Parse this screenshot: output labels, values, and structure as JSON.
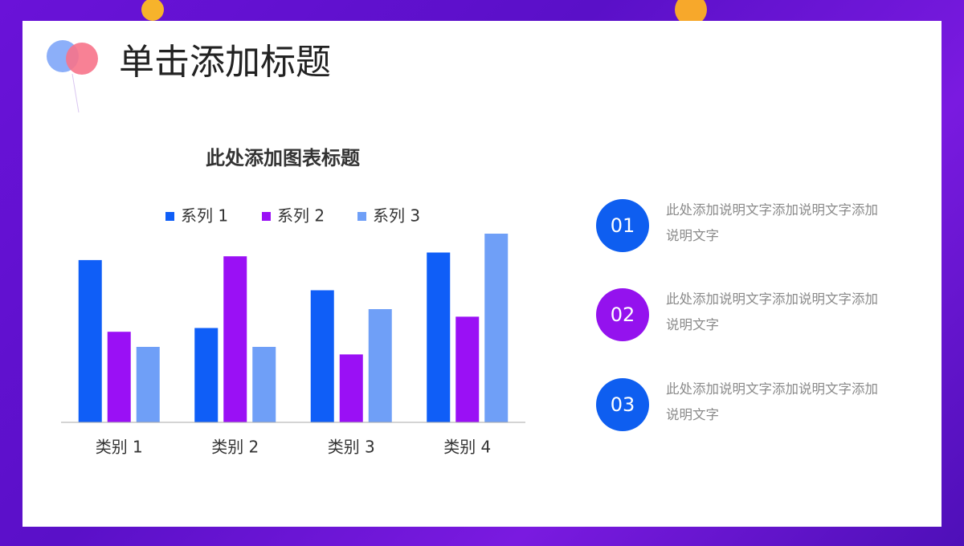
{
  "header": {
    "title": "单击添加标题"
  },
  "chart_data": {
    "type": "bar",
    "title": "此处添加图表标题",
    "categories": [
      "类别 1",
      "类别 2",
      "类别 3",
      "类别 4"
    ],
    "series": [
      {
        "name": "系列 1",
        "color": "#0f5ef7",
        "values": [
          4.3,
          2.5,
          3.5,
          4.5
        ]
      },
      {
        "name": "系列 2",
        "color": "#9a10f5",
        "values": [
          2.4,
          4.4,
          1.8,
          2.8
        ]
      },
      {
        "name": "系列 3",
        "color": "#6f9ff7",
        "values": [
          2,
          2,
          3,
          5
        ]
      }
    ],
    "ylim": [
      0,
      5
    ],
    "grid": false,
    "legend": "top"
  },
  "items": [
    {
      "number": "01",
      "color": "#0e5ef0",
      "text": "此处添加说明文字添加说明文字添加说明文字"
    },
    {
      "number": "02",
      "color": "#9412ee",
      "text": "此处添加说明文字添加说明文字添加说明文字"
    },
    {
      "number": "03",
      "color": "#0e5ef0",
      "text": "此处添加说明文字添加说明文字添加说明文字"
    }
  ]
}
